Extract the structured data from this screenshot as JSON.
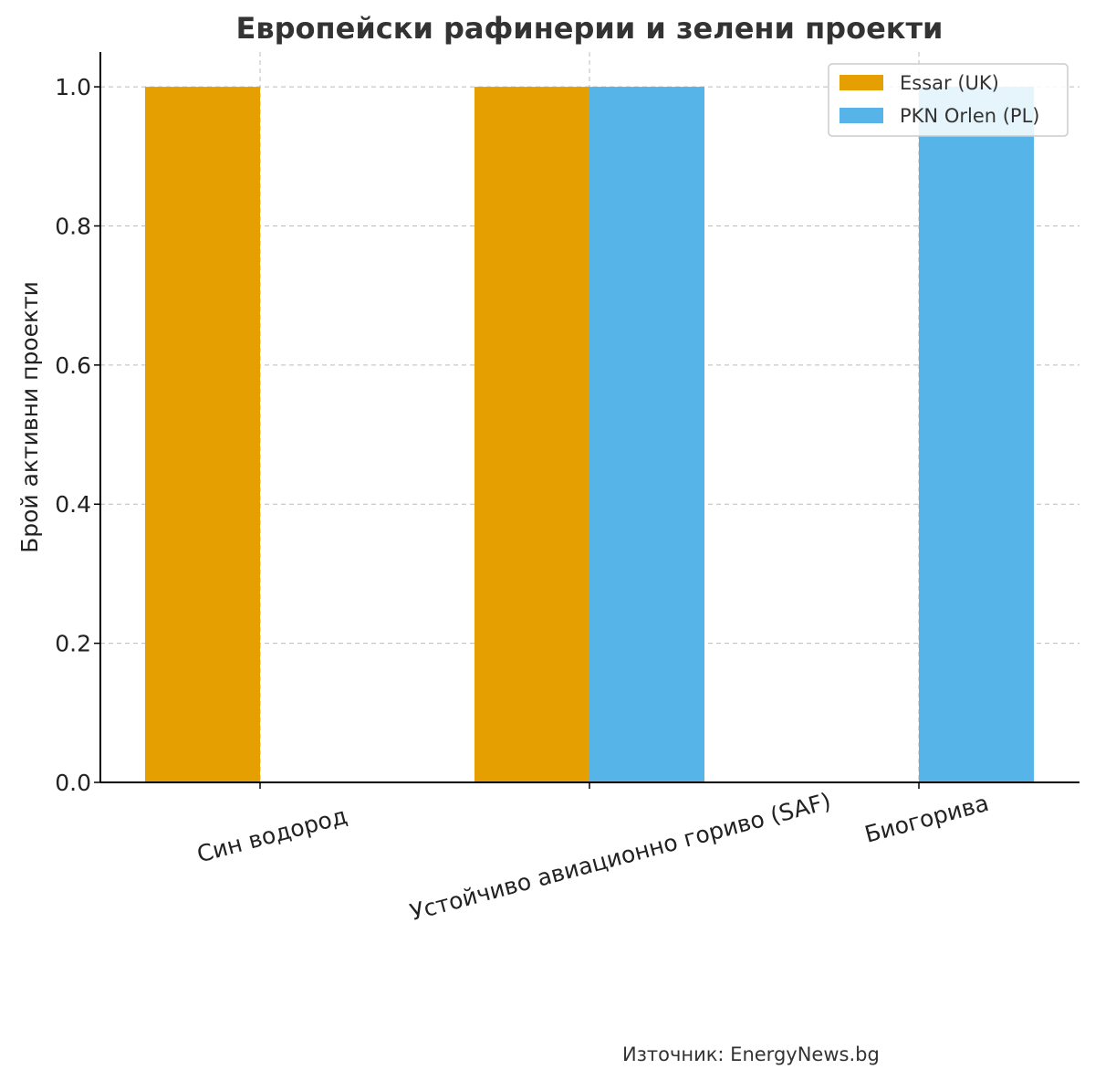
{
  "chart_data": {
    "type": "bar",
    "title": "Европейски рафинерии и зелени проекти",
    "xlabel": "",
    "ylabel": "Брой активни проекти",
    "categories": [
      "Син водород",
      "Устойчиво авиационно гориво (SAF)",
      "Биогорива"
    ],
    "series": [
      {
        "name": "Essar (UK)",
        "values": [
          1,
          1,
          0
        ],
        "color": "#E69F00"
      },
      {
        "name": "PKN Orlen (PL)",
        "values": [
          0,
          1,
          1
        ],
        "color": "#56B4E9"
      }
    ],
    "ylim": [
      0,
      1.05
    ],
    "yticks": [
      "0.0",
      "0.2",
      "0.4",
      "0.6",
      "0.8",
      "1.0"
    ],
    "grid": true,
    "legend_position": "top-right"
  },
  "footer": {
    "source": "Източник: EnergyNews.bg"
  }
}
